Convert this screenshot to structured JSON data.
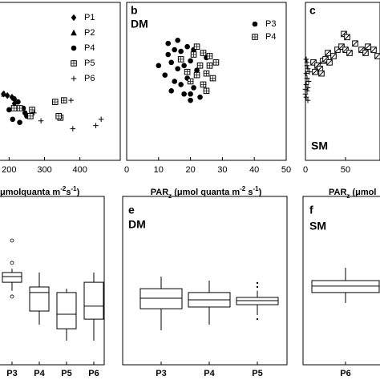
{
  "chart_data": [
    {
      "type": "scatter",
      "x_label": [
        {
          "text": "μmolquanta m"
        },
        {
          "text": "-2",
          "style": "sup"
        },
        {
          "text": "s"
        },
        {
          "text": "-1",
          "style": "sup"
        },
        {
          "text": ")"
        }
      ],
      "xlim": [
        172,
        514
      ],
      "ylim": [
        0,
        100
      ],
      "xticks": [
        200,
        300,
        400
      ],
      "series": [
        {
          "name": "P1",
          "marker": "diamond",
          "color": "#000000",
          "x": [
            184,
            195,
            208,
            215
          ],
          "values": [
            42,
            41,
            40,
            36
          ]
        },
        {
          "name": "P2",
          "marker": "triangle",
          "color": "#000000",
          "x": [
            186
          ],
          "values": [
            42
          ]
        },
        {
          "name": "P4",
          "marker": "circle",
          "color": "#000000",
          "x": [
            214,
            225,
            240,
            245,
            200,
            210,
            230,
            250
          ],
          "values": [
            39,
            37,
            33,
            30,
            32,
            26,
            24,
            28
          ]
        },
        {
          "name": "P5",
          "marker": "square-grid",
          "color": "#000000",
          "x": [
            214,
            230,
            260,
            265,
            345,
            340,
            330,
            355
          ],
          "values": [
            33,
            33,
            28,
            32,
            27,
            28,
            37,
            38
          ]
        },
        {
          "name": "P6",
          "marker": "plus",
          "color": "#000000",
          "x": [
            375,
            290,
            380,
            445,
            460,
            270
          ],
          "values": [
            38,
            25,
            20,
            22,
            26,
            30
          ]
        }
      ]
    },
    {
      "type": "scatter",
      "panel_label": "b",
      "condition": "DM",
      "x_label": [
        {
          "text": "PAR"
        },
        {
          "text": "z",
          "style": "sub"
        },
        {
          "text": " (μmol quanta m"
        },
        {
          "text": "-2",
          "style": "sup"
        },
        {
          "text": " s"
        },
        {
          "text": "-1",
          "style": "sup"
        },
        {
          "text": ")"
        }
      ],
      "xlim": [
        0,
        50
      ],
      "ylim": [
        0,
        100
      ],
      "xticks": [
        0,
        10,
        20,
        30,
        40,
        50
      ],
      "series": [
        {
          "name": "P3",
          "marker": "circle",
          "color": "#000000",
          "x": [
            13,
            15,
            17,
            19,
            21,
            14,
            16,
            18,
            20,
            22,
            12,
            15,
            17,
            19,
            21,
            14,
            18,
            20,
            23,
            25,
            13,
            16,
            20,
            10
          ],
          "values": [
            67,
            70,
            69,
            72,
            70,
            62,
            58,
            60,
            63,
            57,
            54,
            50,
            48,
            52,
            46,
            44,
            42,
            38,
            40,
            65,
            74,
            76,
            42,
            60
          ]
        },
        {
          "name": "P4",
          "marker": "square-grid",
          "color": "#000000",
          "x": [
            21,
            24,
            22,
            26,
            23,
            25,
            27,
            24,
            22,
            19,
            26,
            17,
            28,
            25,
            20
          ],
          "values": [
            67,
            68,
            72,
            66,
            60,
            55,
            52,
            48,
            54,
            56,
            60,
            64,
            62,
            44,
            50
          ]
        }
      ]
    },
    {
      "type": "scatter",
      "panel_label": "c",
      "condition": "SM",
      "x_label": [
        {
          "text": "PAR"
        },
        {
          "text": "z",
          "style": "sub"
        },
        {
          "text": " (μmol"
        }
      ],
      "xlim": [
        0,
        93
      ],
      "ylim": [
        0,
        100
      ],
      "xticks": [
        0,
        50
      ],
      "series": [
        {
          "marker": "plus",
          "color": "#000000",
          "x": [
            1,
            2,
            3,
            1,
            2,
            4,
            1,
            3,
            2,
            0,
            1,
            3,
            5,
            2,
            0
          ],
          "values": [
            64,
            60,
            58,
            55,
            52,
            50,
            48,
            46,
            44,
            42,
            40,
            38,
            56,
            62,
            45
          ]
        },
        {
          "marker": "square-slash",
          "color": "#000000",
          "x": [
            10,
            15,
            18,
            22,
            25,
            30,
            28,
            35,
            40,
            45,
            50,
            55,
            62,
            70,
            75,
            85,
            90,
            20,
            12,
            48,
            52,
            78
          ],
          "values": [
            62,
            60,
            58,
            63,
            64,
            62,
            68,
            66,
            70,
            72,
            70,
            68,
            74,
            70,
            68,
            70,
            66,
            55,
            56,
            80,
            78,
            72
          ]
        }
      ]
    },
    {
      "type": "box",
      "ylim": [
        0,
        100
      ],
      "categories": [
        "P3",
        "P4",
        "P5",
        "P6"
      ],
      "boxes": [
        {
          "min": 44,
          "q1": 49,
          "median": 52.4,
          "q3": 54.8,
          "max": 57,
          "outliers": [
            73.8,
            60.5,
            40.5
          ]
        },
        {
          "min": 23.8,
          "q1": 31.9,
          "median": 42.9,
          "q3": 46.2,
          "max": 54.8,
          "outliers": []
        },
        {
          "min": 14.3,
          "q1": 21.4,
          "median": 30,
          "q3": 42.9,
          "max": 45.2,
          "outliers": []
        },
        {
          "min": 14.3,
          "q1": 27.1,
          "median": 34.8,
          "q3": 49,
          "max": 54.8,
          "outliers": []
        }
      ]
    },
    {
      "type": "box",
      "panel_label": "e",
      "condition": "DM",
      "ylim": [
        0,
        100
      ],
      "categories": [
        "P3",
        "P4",
        "P5"
      ],
      "boxes": [
        {
          "min": 20.5,
          "q1": 33.3,
          "median": 39.5,
          "q3": 45.2,
          "max": 52.4,
          "outliers": []
        },
        {
          "min": 23.8,
          "q1": 34.3,
          "median": 38.6,
          "q3": 42.9,
          "max": 50,
          "outliers": []
        },
        {
          "min": 29.5,
          "q1": 35.7,
          "median": 38.1,
          "q3": 40,
          "max": 44,
          "outliers": [
            48.6,
            46.2,
            27.1
          ]
        }
      ]
    },
    {
      "type": "box",
      "panel_label": "f",
      "condition": "SM",
      "ylim": [
        0,
        100
      ],
      "categories": [
        "P6"
      ],
      "boxes": [
        {
          "min": 36.7,
          "q1": 42.9,
          "median": 46.7,
          "q3": 50,
          "max": 57.6,
          "outliers": []
        }
      ]
    }
  ]
}
